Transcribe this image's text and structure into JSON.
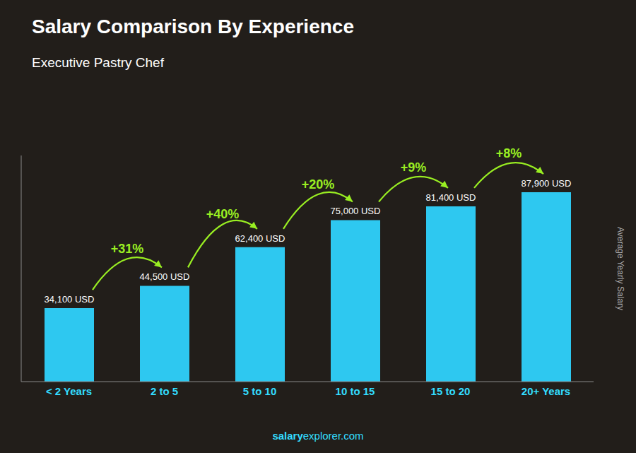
{
  "chart_data": {
    "type": "bar",
    "title": "Salary Comparison By Experience",
    "subtitle": "Executive Pastry Chef",
    "y_label": "Average Yearly Salary",
    "categories": [
      "< 2 Years",
      "2 to 5",
      "5 to 10",
      "10 to 15",
      "15 to 20",
      "20+ Years"
    ],
    "values": [
      34100,
      44500,
      62400,
      75000,
      81400,
      87900
    ],
    "value_labels": [
      "34,100 USD",
      "44,500 USD",
      "62,400 USD",
      "75,000 USD",
      "81,400 USD",
      "87,900 USD"
    ],
    "data_labels": true,
    "color": "#2ec8f0",
    "ylim": [
      0,
      105000
    ],
    "tick_labels": "x",
    "grid": false,
    "annotations": [
      "+31%",
      "+40%",
      "+20%",
      "+9%",
      "+8%"
    ],
    "watermark": [
      "salary",
      "explorer.com"
    ]
  }
}
